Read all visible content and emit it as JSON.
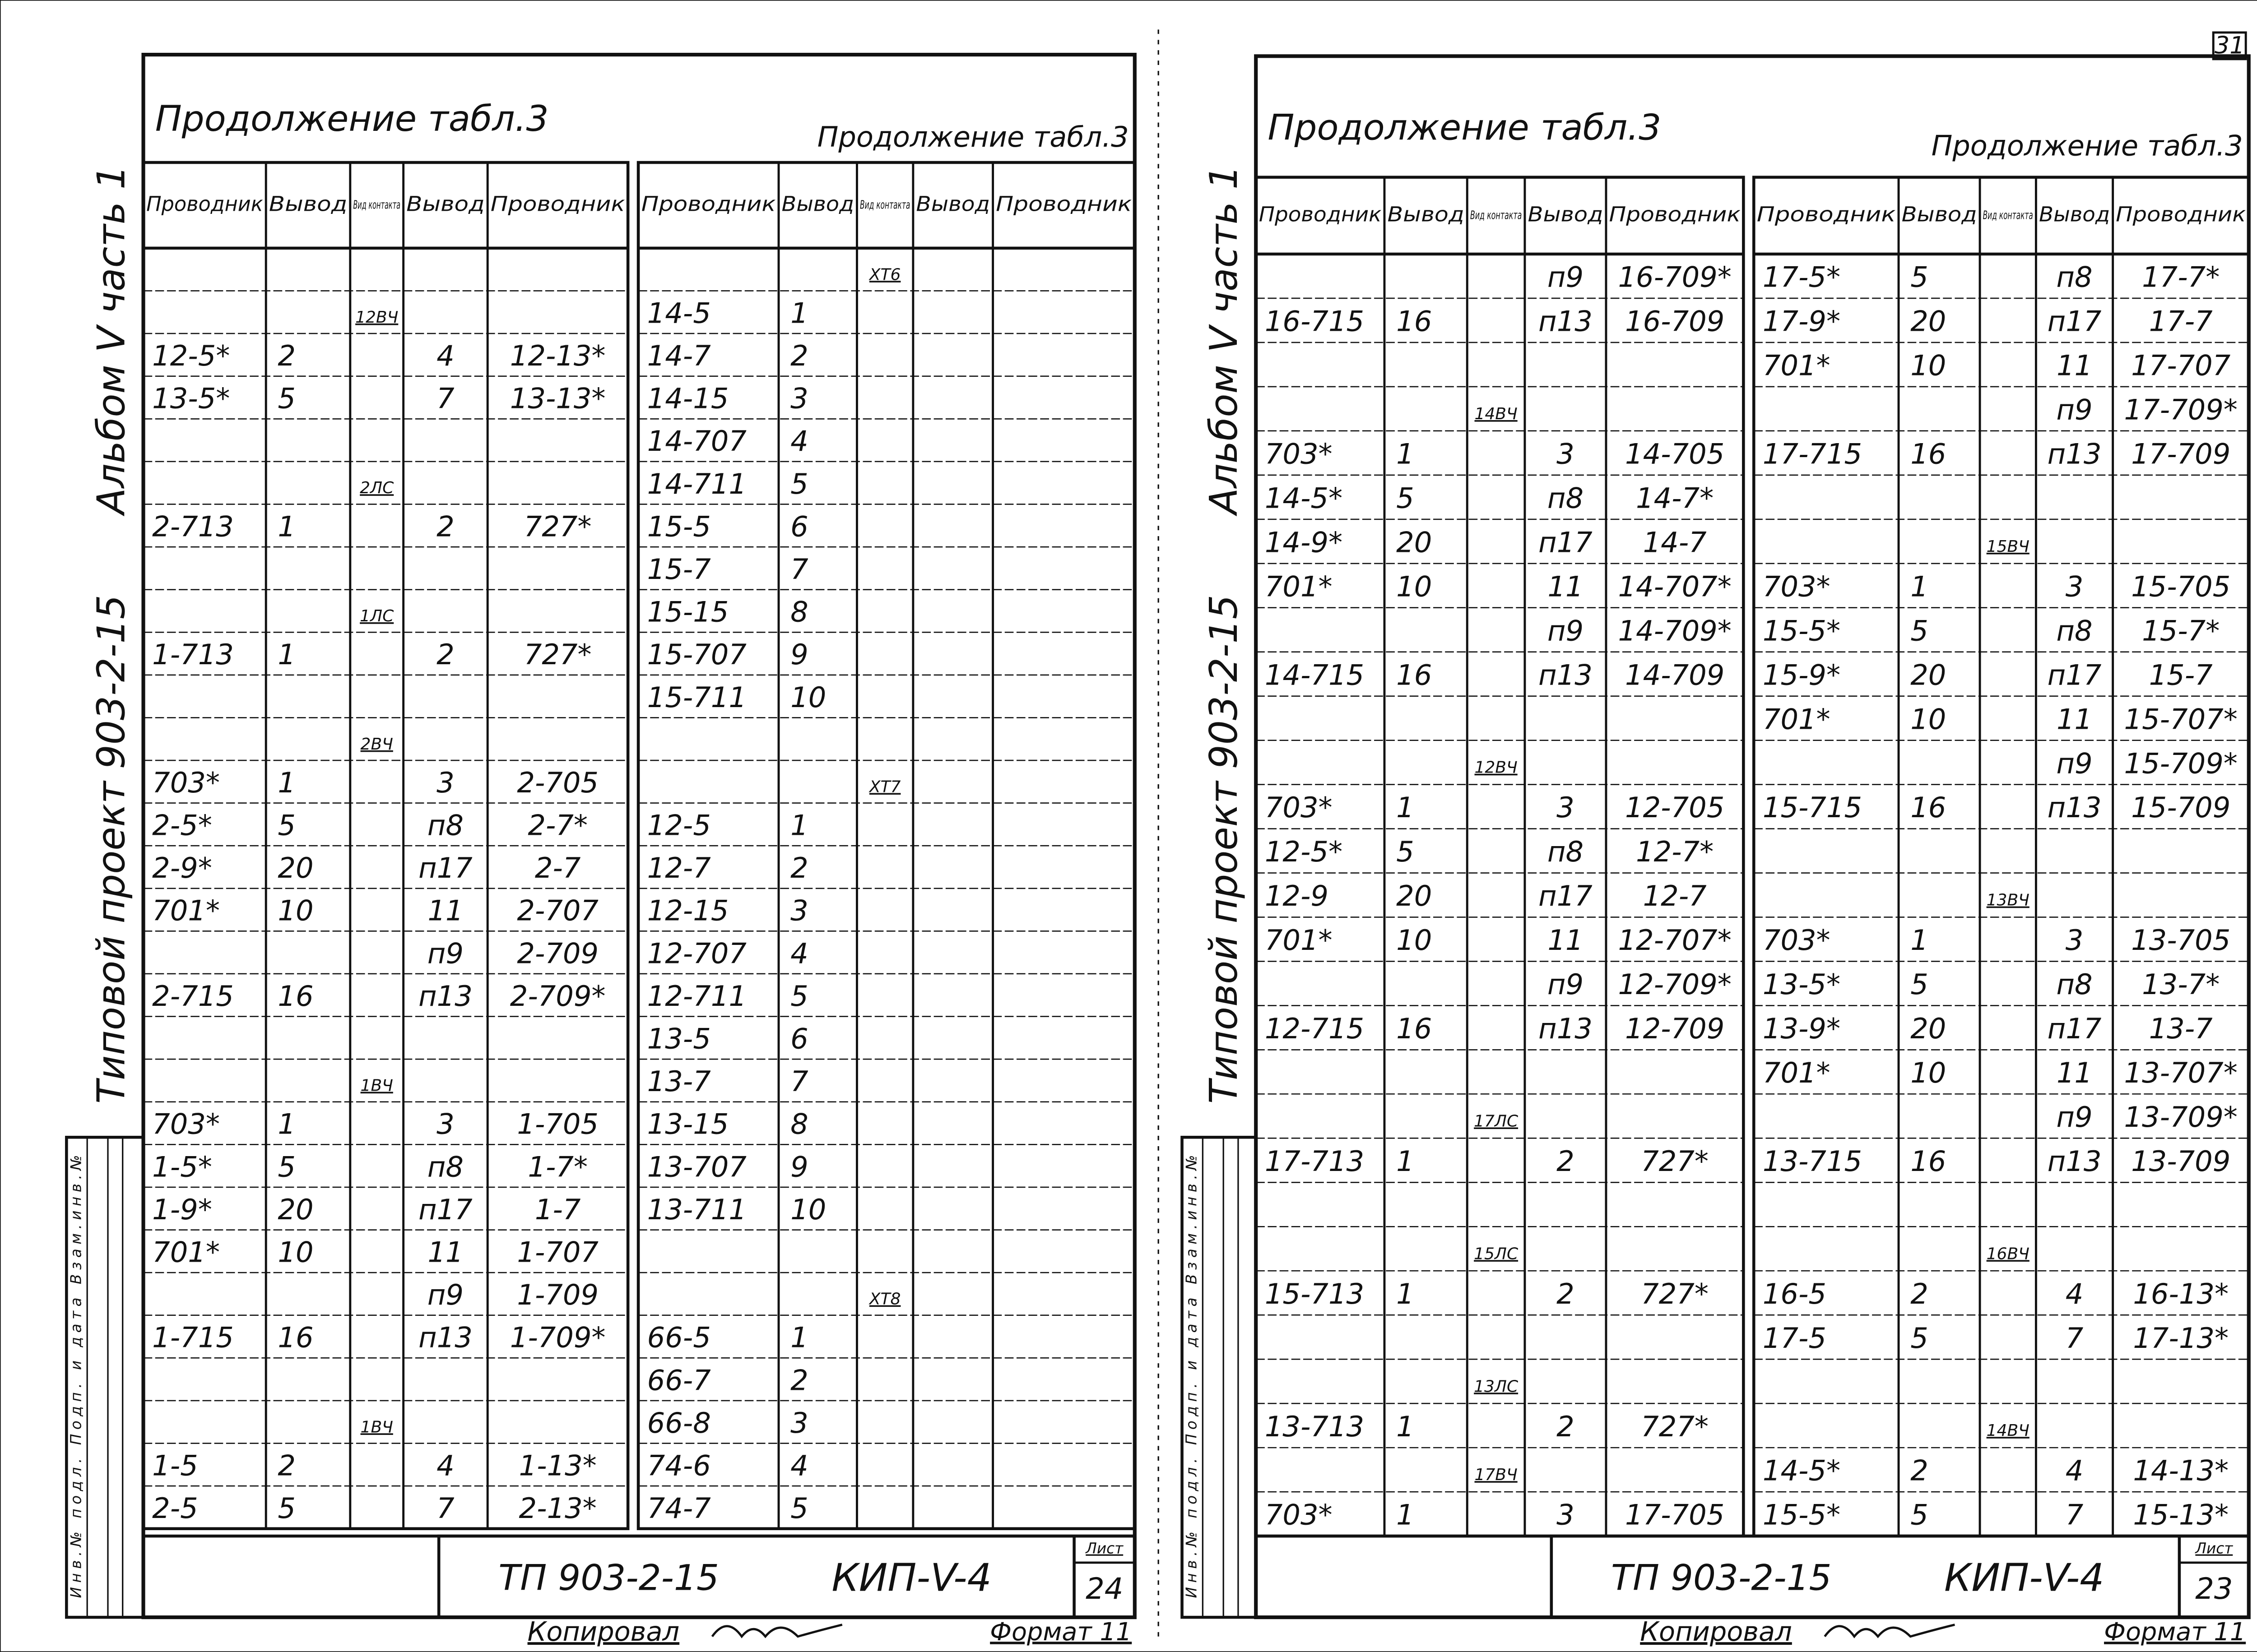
{
  "sheets": [
    {
      "title_left": "Продолжение табл.3",
      "title_right": "Продолжение табл.3",
      "album": "Альбом V часть 1",
      "project": "Типовой проект 903-2-15",
      "side_stamp": "Инв.№ подл. Подп. и дата Взам.инв.№",
      "tables": [
        {
          "headers": [
            "Проводник",
            "Вывод",
            "Вид контакта",
            "Вывод",
            "Проводник"
          ],
          "rows": [
            [
              null,
              null,
              null,
              null,
              null
            ],
            [
              null,
              null,
              "12ВЧ",
              null,
              null
            ],
            [
              "12-5*",
              "2",
              null,
              "4",
              "12-13*"
            ],
            [
              "13-5*",
              "5",
              null,
              "7",
              "13-13*"
            ],
            [
              null,
              null,
              null,
              null,
              null
            ],
            [
              null,
              null,
              "2ЛС",
              null,
              null
            ],
            [
              "2-713",
              "1",
              null,
              "2",
              "727*"
            ],
            [
              null,
              null,
              null,
              null,
              null
            ],
            [
              null,
              null,
              "1ЛС",
              null,
              null
            ],
            [
              "1-713",
              "1",
              null,
              "2",
              "727*"
            ],
            [
              null,
              null,
              null,
              null,
              null
            ],
            [
              null,
              null,
              "2ВЧ",
              null,
              null
            ],
            [
              "703*",
              "1",
              null,
              "3",
              "2-705"
            ],
            [
              "2-5*",
              "5",
              null,
              "п8",
              "2-7*"
            ],
            [
              "2-9*",
              "20",
              null,
              "п17",
              "2-7"
            ],
            [
              "701*",
              "10",
              null,
              "11",
              "2-707"
            ],
            [
              null,
              null,
              null,
              "п9",
              "2-709"
            ],
            [
              "2-715",
              "16",
              null,
              "п13",
              "2-709*"
            ],
            [
              null,
              null,
              null,
              null,
              null
            ],
            [
              null,
              null,
              "1ВЧ",
              null,
              null
            ],
            [
              "703*",
              "1",
              null,
              "3",
              "1-705"
            ],
            [
              "1-5*",
              "5",
              null,
              "п8",
              "1-7*"
            ],
            [
              "1-9*",
              "20",
              null,
              "п17",
              "1-7"
            ],
            [
              "701*",
              "10",
              null,
              "11",
              "1-707"
            ],
            [
              null,
              null,
              null,
              "п9",
              "1-709"
            ],
            [
              "1-715",
              "16",
              null,
              "п13",
              "1-709*"
            ],
            [
              null,
              null,
              null,
              null,
              null
            ],
            [
              null,
              null,
              "1ВЧ",
              null,
              null
            ],
            [
              "1-5",
              "2",
              null,
              "4",
              "1-13*"
            ],
            [
              "2-5",
              "5",
              null,
              "7",
              "2-13*"
            ]
          ]
        },
        {
          "headers": [
            "Проводник",
            "Вывод",
            "Вид контакта",
            "Вывод",
            "Проводник"
          ],
          "rows": [
            [
              null,
              null,
              "ХТ6",
              null,
              null
            ],
            [
              "14-5",
              "1",
              null,
              null,
              null
            ],
            [
              "14-7",
              "2",
              null,
              null,
              null
            ],
            [
              "14-15",
              "3",
              null,
              null,
              null
            ],
            [
              "14-707",
              "4",
              null,
              null,
              null
            ],
            [
              "14-711",
              "5",
              null,
              null,
              null
            ],
            [
              "15-5",
              "6",
              null,
              null,
              null
            ],
            [
              "15-7",
              "7",
              null,
              null,
              null
            ],
            [
              "15-15",
              "8",
              null,
              null,
              null
            ],
            [
              "15-707",
              "9",
              null,
              null,
              null
            ],
            [
              "15-711",
              "10",
              null,
              null,
              null
            ],
            [
              null,
              null,
              null,
              null,
              null
            ],
            [
              null,
              null,
              "ХТ7",
              null,
              null
            ],
            [
              "12-5",
              "1",
              null,
              null,
              null
            ],
            [
              "12-7",
              "2",
              null,
              null,
              null
            ],
            [
              "12-15",
              "3",
              null,
              null,
              null
            ],
            [
              "12-707",
              "4",
              null,
              null,
              null
            ],
            [
              "12-711",
              "5",
              null,
              null,
              null
            ],
            [
              "13-5",
              "6",
              null,
              null,
              null
            ],
            [
              "13-7",
              "7",
              null,
              null,
              null
            ],
            [
              "13-15",
              "8",
              null,
              null,
              null
            ],
            [
              "13-707",
              "9",
              null,
              null,
              null
            ],
            [
              "13-711",
              "10",
              null,
              null,
              null
            ],
            [
              null,
              null,
              null,
              null,
              null
            ],
            [
              null,
              null,
              "ХТ8",
              null,
              null
            ],
            [
              "66-5",
              "1",
              null,
              null,
              null
            ],
            [
              "66-7",
              "2",
              null,
              null,
              null
            ],
            [
              "66-8",
              "3",
              null,
              null,
              null
            ],
            [
              "74-6",
              "4",
              null,
              null,
              null
            ],
            [
              "74-7",
              "5",
              null,
              null,
              null
            ]
          ]
        }
      ],
      "code": "ТП 903-2-15",
      "mark": "КИП-V-4",
      "sheet_label": "Лист",
      "sheet_no": "24",
      "copied": "Копировал",
      "format": "Формат 11"
    },
    {
      "title_left": "Продолжение табл.3",
      "title_right": "Продолжение табл.3",
      "album": "Альбом V часть 1",
      "project": "Типовой проект 903-2-15",
      "side_stamp": "Инв.№ подл. Подп. и дата Взам.инв.№",
      "page_no": "31",
      "tables": [
        {
          "headers": [
            "Проводник",
            "Вывод",
            "Вид контакта",
            "Вывод",
            "Проводник"
          ],
          "rows": [
            [
              null,
              null,
              null,
              "п9",
              "16-709*"
            ],
            [
              "16-715",
              "16",
              null,
              "п13",
              "16-709"
            ],
            [
              null,
              null,
              null,
              null,
              null
            ],
            [
              null,
              null,
              "14ВЧ",
              null,
              null
            ],
            [
              "703*",
              "1",
              null,
              "3",
              "14-705"
            ],
            [
              "14-5*",
              "5",
              null,
              "п8",
              "14-7*"
            ],
            [
              "14-9*",
              "20",
              null,
              "п17",
              "14-7"
            ],
            [
              "701*",
              "10",
              null,
              "11",
              "14-707*"
            ],
            [
              null,
              null,
              null,
              "п9",
              "14-709*"
            ],
            [
              "14-715",
              "16",
              null,
              "п13",
              "14-709"
            ],
            [
              null,
              null,
              null,
              null,
              null
            ],
            [
              null,
              null,
              "12ВЧ",
              null,
              null
            ],
            [
              "703*",
              "1",
              null,
              "3",
              "12-705"
            ],
            [
              "12-5*",
              "5",
              null,
              "п8",
              "12-7*"
            ],
            [
              "12-9",
              "20",
              null,
              "п17",
              "12-7"
            ],
            [
              "701*",
              "10",
              null,
              "11",
              "12-707*"
            ],
            [
              null,
              null,
              null,
              "п9",
              "12-709*"
            ],
            [
              "12-715",
              "16",
              null,
              "п13",
              "12-709"
            ],
            [
              null,
              null,
              null,
              null,
              null
            ],
            [
              null,
              null,
              "17ЛС",
              null,
              null
            ],
            [
              "17-713",
              "1",
              null,
              "2",
              "727*"
            ],
            [
              null,
              null,
              null,
              null,
              null
            ],
            [
              null,
              null,
              "15ЛС",
              null,
              null
            ],
            [
              "15-713",
              "1",
              null,
              "2",
              "727*"
            ],
            [
              null,
              null,
              null,
              null,
              null
            ],
            [
              null,
              null,
              "13ЛС",
              null,
              null
            ],
            [
              "13-713",
              "1",
              null,
              "2",
              "727*"
            ],
            [
              null,
              null,
              "17ВЧ",
              null,
              null
            ],
            [
              "703*",
              "1",
              null,
              "3",
              "17-705"
            ]
          ]
        },
        {
          "headers": [
            "Проводник",
            "Вывод",
            "Вид контакта",
            "Вывод",
            "Проводник"
          ],
          "rows": [
            [
              "17-5*",
              "5",
              null,
              "п8",
              "17-7*"
            ],
            [
              "17-9*",
              "20",
              null,
              "п17",
              "17-7"
            ],
            [
              "701*",
              "10",
              null,
              "11",
              "17-707"
            ],
            [
              null,
              null,
              null,
              "п9",
              "17-709*"
            ],
            [
              "17-715",
              "16",
              null,
              "п13",
              "17-709"
            ],
            [
              null,
              null,
              null,
              null,
              null
            ],
            [
              null,
              null,
              "15ВЧ",
              null,
              null
            ],
            [
              "703*",
              "1",
              null,
              "3",
              "15-705"
            ],
            [
              "15-5*",
              "5",
              null,
              "п8",
              "15-7*"
            ],
            [
              "15-9*",
              "20",
              null,
              "п17",
              "15-7"
            ],
            [
              "701*",
              "10",
              null,
              "11",
              "15-707*"
            ],
            [
              null,
              null,
              null,
              "п9",
              "15-709*"
            ],
            [
              "15-715",
              "16",
              null,
              "п13",
              "15-709"
            ],
            [
              null,
              null,
              null,
              null,
              null
            ],
            [
              null,
              null,
              "13ВЧ",
              null,
              null
            ],
            [
              "703*",
              "1",
              null,
              "3",
              "13-705"
            ],
            [
              "13-5*",
              "5",
              null,
              "п8",
              "13-7*"
            ],
            [
              "13-9*",
              "20",
              null,
              "п17",
              "13-7"
            ],
            [
              "701*",
              "10",
              null,
              "11",
              "13-707*"
            ],
            [
              null,
              null,
              null,
              "п9",
              "13-709*"
            ],
            [
              "13-715",
              "16",
              null,
              "п13",
              "13-709"
            ],
            [
              null,
              null,
              null,
              null,
              null
            ],
            [
              null,
              null,
              "16ВЧ",
              null,
              null
            ],
            [
              "16-5",
              "2",
              null,
              "4",
              "16-13*"
            ],
            [
              "17-5",
              "5",
              null,
              "7",
              "17-13*"
            ],
            [
              null,
              null,
              null,
              null,
              null
            ],
            [
              null,
              null,
              "14ВЧ",
              null,
              null
            ],
            [
              "14-5*",
              "2",
              null,
              "4",
              "14-13*"
            ],
            [
              "15-5*",
              "5",
              null,
              "7",
              "15-13*"
            ]
          ]
        }
      ],
      "code": "ТП 903-2-15",
      "mark": "КИП-V-4",
      "sheet_label": "Лист",
      "sheet_no": "23",
      "copied": "Копировал",
      "format": "Формат 11"
    }
  ]
}
